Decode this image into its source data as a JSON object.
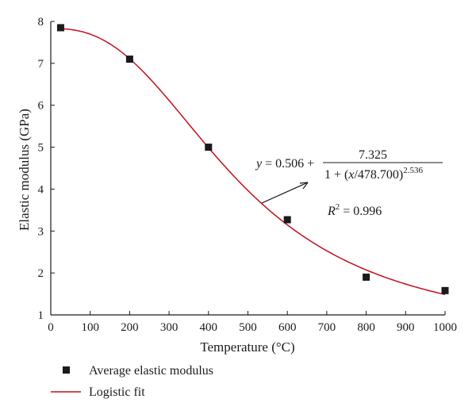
{
  "chart_data": {
    "type": "scatter",
    "xlabel": "Temperature (°C)",
    "ylabel": "Elastic modulus (GPa)",
    "xlim": [
      0,
      1000
    ],
    "ylim": [
      1,
      8
    ],
    "xticks": [
      0,
      100,
      200,
      300,
      400,
      500,
      600,
      700,
      800,
      900,
      1000
    ],
    "yticks": [
      1,
      2,
      3,
      4,
      5,
      6,
      7,
      8
    ],
    "grid": false,
    "legend_position": "bottom-left",
    "series": [
      {
        "name": "Average elastic modulus",
        "kind": "markers",
        "marker": "square",
        "color": "#1a1a1a",
        "x": [
          25,
          200,
          400,
          600,
          800,
          1000
        ],
        "y": [
          7.85,
          7.1,
          5.0,
          3.27,
          1.9,
          1.58
        ]
      },
      {
        "name": "Logistic fit",
        "kind": "line",
        "color": "#c0101a",
        "model": "logistic",
        "params": {
          "a": 0.506,
          "b": 7.325,
          "x0": 478.7,
          "p": 2.536
        }
      }
    ],
    "annotation": {
      "lhs": "y",
      "eq_sign": " = 0.506 + ",
      "numerator": "7.325",
      "denom_prefix": "1 + (",
      "denom_var": "x",
      "denom_rest": "/478.700)",
      "denom_exp": "2.536",
      "r2_label": "R",
      "r2_sup": "2",
      "r2_value": " = 0.996"
    }
  }
}
